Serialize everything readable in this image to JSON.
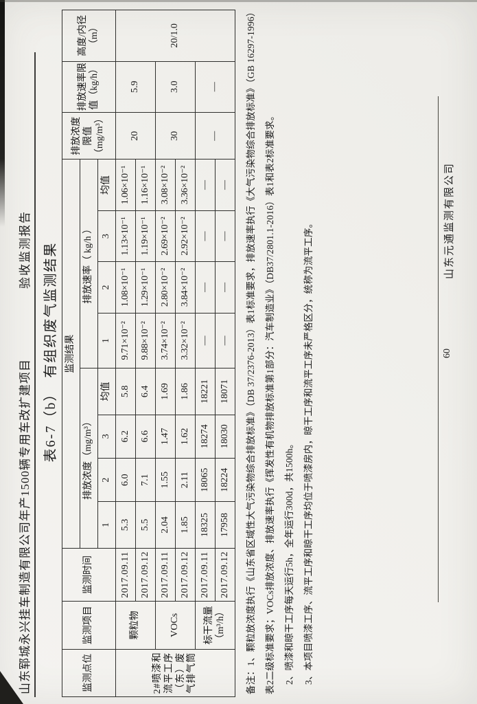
{
  "page": {
    "header": {
      "project": "山东郓城永兴挂车制造有限公司年产1500辆专用车改扩建项目",
      "report_type": "验收监测报告"
    },
    "title": "表6-7（b）　有组织废气监测结果",
    "footer": {
      "page_number": "60",
      "company": "山东元通监测有限公司"
    }
  },
  "table": {
    "header": {
      "monitoring_point": "监测点位",
      "monitoring_item": "监测项目",
      "monitoring_time": "监测时间",
      "monitoring_result": "监测结果",
      "concentration_group": "排放浓度（mg/m³）",
      "rate_group": "排放速率（ kg/h ）",
      "sub_columns": [
        "1",
        "2",
        "3",
        "均值"
      ],
      "concentration_limit": "排放浓度限值（mg/m³）",
      "rate_limit": "排放速率限值（kg/h）",
      "stack_spec": "高度/内径（m）"
    },
    "point": "2#喷漆和流平工序（东）废气排气筒",
    "stack_value": "20/1.0",
    "groups": [
      {
        "item": "颗粒物",
        "conc_limit": "20",
        "rate_limit": "5.9",
        "rows": [
          {
            "time": "2017.09.11",
            "conc": [
              "5.3",
              "6.0",
              "6.2",
              "5.8"
            ],
            "rate": [
              "9.71×10⁻²",
              "1.08×10⁻¹",
              "1.13×10⁻¹",
              "1.06×10⁻¹"
            ]
          },
          {
            "time": "2017.09.12",
            "conc": [
              "5.5",
              "7.1",
              "6.6",
              "6.4"
            ],
            "rate": [
              "9.88×10⁻²",
              "1.29×10⁻¹",
              "1.19×10⁻¹",
              "1.16×10⁻¹"
            ]
          }
        ]
      },
      {
        "item": "VOCs",
        "conc_limit": "30",
        "rate_limit": "3.0",
        "rows": [
          {
            "time": "2017.09.11",
            "conc": [
              "2.04",
              "1.55",
              "1.47",
              "1.69"
            ],
            "rate": [
              "3.74×10⁻²",
              "2.80×10⁻²",
              "2.69×10⁻²",
              "3.08×10⁻²"
            ]
          },
          {
            "time": "2017.09.12",
            "conc": [
              "1.85",
              "2.11",
              "1.62",
              "1.86"
            ],
            "rate": [
              "3.32×10⁻²",
              "3.84×10⁻²",
              "2.92×10⁻²",
              "3.36×10⁻²"
            ]
          }
        ]
      },
      {
        "item": "标干流量（m³/h）",
        "conc_limit": "—",
        "rate_limit": "—",
        "rows": [
          {
            "time": "2017.09.11",
            "conc": [
              "18325",
              "18065",
              "18274",
              "18221"
            ],
            "rate": [
              "—",
              "—",
              "—",
              "—"
            ]
          },
          {
            "time": "2017.09.12",
            "conc": [
              "17958",
              "18224",
              "18030",
              "18071"
            ],
            "rate": [
              "—",
              "—",
              "—",
              "—"
            ]
          }
        ]
      }
    ]
  },
  "notes": {
    "lines": [
      "备注：1、颗粒放浓度执行《山东省区域性大气污染物综合排放标准》（DB 37/2376-2013）表1标准要求，排放速率执行《大气污染物综合排放标准》（GB 16297-1996）",
      "表2二级标准要求；VOCs排放浓度、排放速率执行《挥发性有机物排放标准第1部分：汽车制造业》（DB37/2801.1-2016）表1和表2标准要求。",
      "2、喷漆和晾干工序每天运行5h，全年运行300d，共1500h。",
      "3、本项目喷漆工序、流平工序和晾干工序均位于喷漆房内，晾干工序和流平工序未严格区分，统称为流平工序。"
    ]
  }
}
